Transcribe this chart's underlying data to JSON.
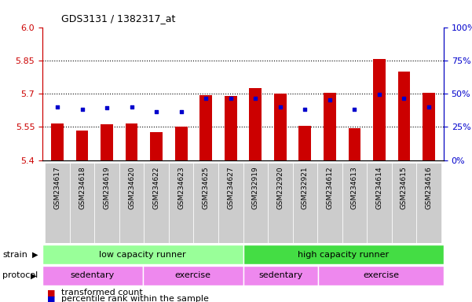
{
  "title": "GDS3131 / 1382317_at",
  "samples": [
    "GSM234617",
    "GSM234618",
    "GSM234619",
    "GSM234620",
    "GSM234622",
    "GSM234623",
    "GSM234625",
    "GSM234627",
    "GSM232919",
    "GSM232920",
    "GSM232921",
    "GSM234612",
    "GSM234613",
    "GSM234614",
    "GSM234615",
    "GSM234616"
  ],
  "bar_values": [
    5.565,
    5.535,
    5.56,
    5.565,
    5.525,
    5.55,
    5.693,
    5.69,
    5.725,
    5.7,
    5.555,
    5.705,
    5.545,
    5.855,
    5.8,
    5.705
  ],
  "blue_values": [
    5.638,
    5.628,
    5.635,
    5.64,
    5.62,
    5.62,
    5.68,
    5.678,
    5.68,
    5.638,
    5.628,
    5.673,
    5.628,
    5.695,
    5.678,
    5.638
  ],
  "ylim_left": [
    5.4,
    6.0
  ],
  "ylim_right": [
    0,
    100
  ],
  "yticks_left": [
    5.4,
    5.55,
    5.7,
    5.85,
    6.0
  ],
  "yticks_right": [
    0,
    25,
    50,
    75,
    100
  ],
  "ytick_labels_right": [
    "0%",
    "25%",
    "50%",
    "75%",
    "100%"
  ],
  "bar_color": "#cc0000",
  "blue_color": "#0000cc",
  "bar_bottom": 5.4,
  "strain_labels": [
    "low capacity runner",
    "high capacity runner"
  ],
  "strain_color_low": "#99ff99",
  "strain_color_high": "#44dd44",
  "protocol_color": "#ee88ee",
  "protocol_segments": [
    [
      0,
      4,
      "sedentary"
    ],
    [
      4,
      8,
      "exercise"
    ],
    [
      8,
      11,
      "sedentary"
    ],
    [
      11,
      16,
      "exercise"
    ]
  ],
  "legend_items": [
    "transformed count",
    "percentile rank within the sample"
  ],
  "legend_colors": [
    "#cc0000",
    "#0000cc"
  ],
  "tick_label_color_left": "#cc0000",
  "tick_label_color_right": "#0000cc",
  "grid_yticks": [
    5.55,
    5.7,
    5.85
  ]
}
